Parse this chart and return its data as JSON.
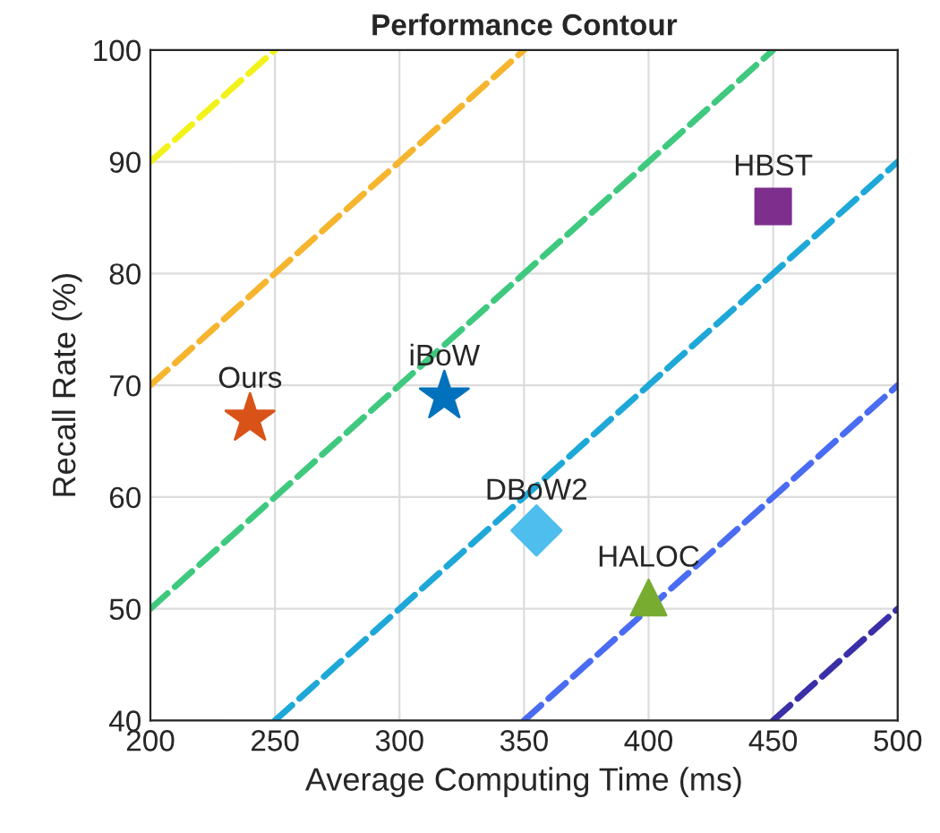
{
  "chart_data": {
    "type": "scatter",
    "title": "Performance Contour",
    "xlabel": "Average Computing Time (ms)",
    "ylabel": "Recall Rate (%)",
    "xlim": [
      200,
      500
    ],
    "ylim": [
      40,
      100
    ],
    "xticks": [
      200,
      250,
      300,
      350,
      400,
      450,
      500
    ],
    "yticks": [
      40,
      50,
      60,
      70,
      80,
      90,
      100
    ],
    "grid": true,
    "series": [
      {
        "type": "line",
        "line_style": "dashed",
        "color": "#f2f21a",
        "x": [
          200,
          250
        ],
        "values": [
          90,
          100
        ]
      },
      {
        "type": "line",
        "line_style": "dashed",
        "color": "#f5b52e",
        "x": [
          200,
          350
        ],
        "values": [
          70,
          100
        ]
      },
      {
        "type": "line",
        "line_style": "dashed",
        "color": "#3fc97f",
        "x": [
          200,
          450
        ],
        "values": [
          50,
          100
        ]
      },
      {
        "type": "line",
        "line_style": "dashed",
        "color": "#1ea8d8",
        "x": [
          250,
          500
        ],
        "values": [
          40,
          90
        ]
      },
      {
        "type": "line",
        "line_style": "dashed",
        "color": "#4a6cf2",
        "x": [
          350,
          500
        ],
        "values": [
          40,
          70
        ]
      },
      {
        "type": "line",
        "line_style": "dashed",
        "color": "#3a2fa8",
        "x": [
          450,
          500
        ],
        "values": [
          40,
          50
        ]
      },
      {
        "name": "Ours",
        "marker": "star",
        "color": "#d95319",
        "x": [
          240
        ],
        "values": [
          67
        ]
      },
      {
        "name": "iBoW",
        "marker": "star",
        "color": "#0072bd",
        "x": [
          318
        ],
        "values": [
          69
        ]
      },
      {
        "name": "DBoW2",
        "marker": "diamond",
        "color": "#4dbeee",
        "x": [
          355
        ],
        "values": [
          57
        ]
      },
      {
        "name": "HALOC",
        "marker": "triangle",
        "color": "#77ac30",
        "x": [
          400
        ],
        "values": [
          51
        ]
      },
      {
        "name": "HBST",
        "marker": "square",
        "color": "#7e2f8e",
        "x": [
          450
        ],
        "values": [
          86
        ]
      }
    ]
  }
}
